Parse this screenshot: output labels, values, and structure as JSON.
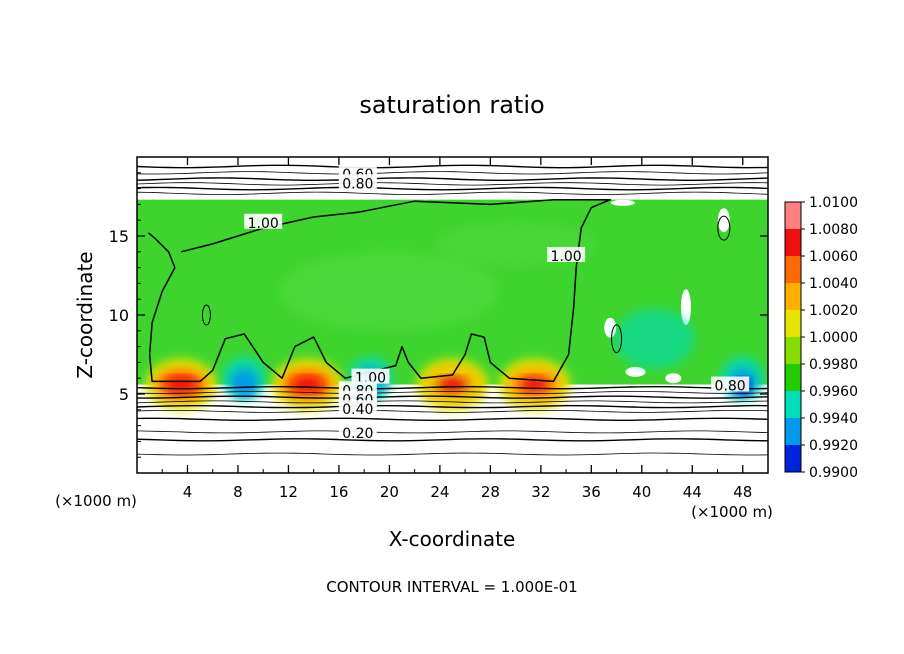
{
  "chart_data": {
    "type": "heatmap",
    "title": "saturation ratio",
    "xlabel": "X-coordinate",
    "ylabel": "Z-coordinate",
    "x_unit": "(×1000 m)",
    "x_unit_right": "(×1000 m)",
    "xlim": [
      0,
      50
    ],
    "ylim": [
      0,
      20
    ],
    "x_ticks": [
      4,
      8,
      12,
      16,
      20,
      24,
      28,
      32,
      36,
      40,
      44,
      48
    ],
    "y_ticks": [
      5,
      10,
      15
    ],
    "footer": "CONTOUR INTERVAL = 1.000E-01",
    "colorbar": {
      "levels": [
        "1.0100",
        "1.0080",
        "1.0060",
        "1.0040",
        "1.0020",
        "1.0000",
        "0.9980",
        "0.9960",
        "0.9940",
        "0.9920",
        "0.9900"
      ],
      "colors": [
        "#ff8080",
        "#ee1010",
        "#ff6a00",
        "#ffb000",
        "#e4e400",
        "#88dd00",
        "#22cc00",
        "#00ddbb",
        "#0099ee",
        "#0022dd",
        "#6a00b0"
      ]
    },
    "field": {
      "background_value": 1.0,
      "background_color": "#3ed42e",
      "cloud_top_km": 17.3,
      "cloud_base_km": 5.6,
      "warm_spots": [
        {
          "x": 3.5,
          "z": 6.0,
          "value": 1.006
        },
        {
          "x": 13.5,
          "z": 6.1,
          "value": 1.007
        },
        {
          "x": 25.0,
          "z": 5.9,
          "value": 1.003
        },
        {
          "x": 31.5,
          "z": 5.9,
          "value": 1.005
        }
      ],
      "cold_spots": [
        {
          "x": 8.5,
          "z": 6.2,
          "value": 0.993
        },
        {
          "x": 18.5,
          "z": 6.2,
          "value": 0.996
        },
        {
          "x": 48.0,
          "z": 6.3,
          "value": 0.992
        }
      ]
    },
    "contour_labels": [
      {
        "text": "0.60",
        "x": 17.5,
        "z": 19.0
      },
      {
        "text": "0.80",
        "x": 17.5,
        "z": 18.4
      },
      {
        "text": "1.00",
        "x": 10.0,
        "z": 15.9
      },
      {
        "text": "1.00",
        "x": 34.0,
        "z": 13.8
      },
      {
        "text": "1.00",
        "x": 18.5,
        "z": 6.1
      },
      {
        "text": "0.80",
        "x": 17.5,
        "z": 5.3
      },
      {
        "text": "0.60",
        "x": 17.5,
        "z": 4.7
      },
      {
        "text": "0.40",
        "x": 17.5,
        "z": 4.1
      },
      {
        "text": "0.20",
        "x": 17.5,
        "z": 2.6
      },
      {
        "text": "0.80",
        "x": 47.0,
        "z": 5.6
      }
    ]
  }
}
